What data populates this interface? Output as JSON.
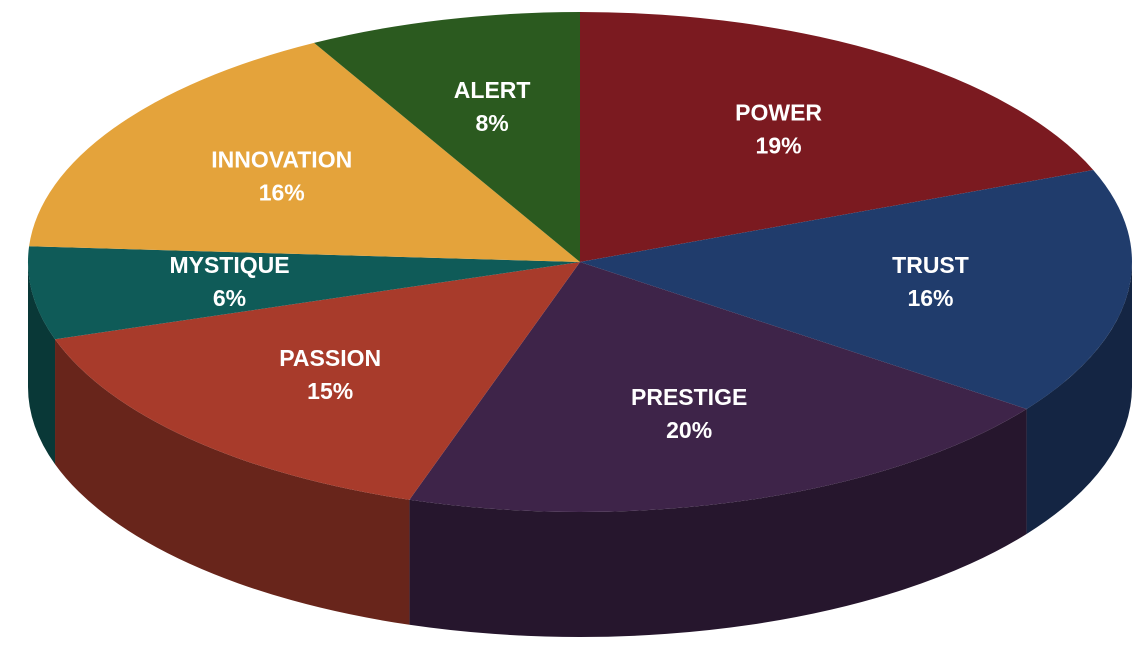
{
  "chart_data": {
    "type": "pie",
    "categories": [
      "POWER",
      "TRUST",
      "PRESTIGE",
      "PASSION",
      "MYSTIQUE",
      "INNOVATION",
      "ALERT"
    ],
    "values": [
      19,
      16,
      20,
      15,
      6,
      16,
      8
    ],
    "value_labels": [
      "19%",
      "16%",
      "20%",
      "15%",
      "6%",
      "16%",
      "8%"
    ],
    "colors": [
      "#7b1a20",
      "#203c6c",
      "#3e2449",
      "#a83b2b",
      "#0f5b58",
      "#e4a33b",
      "#2b5a1f"
    ]
  }
}
